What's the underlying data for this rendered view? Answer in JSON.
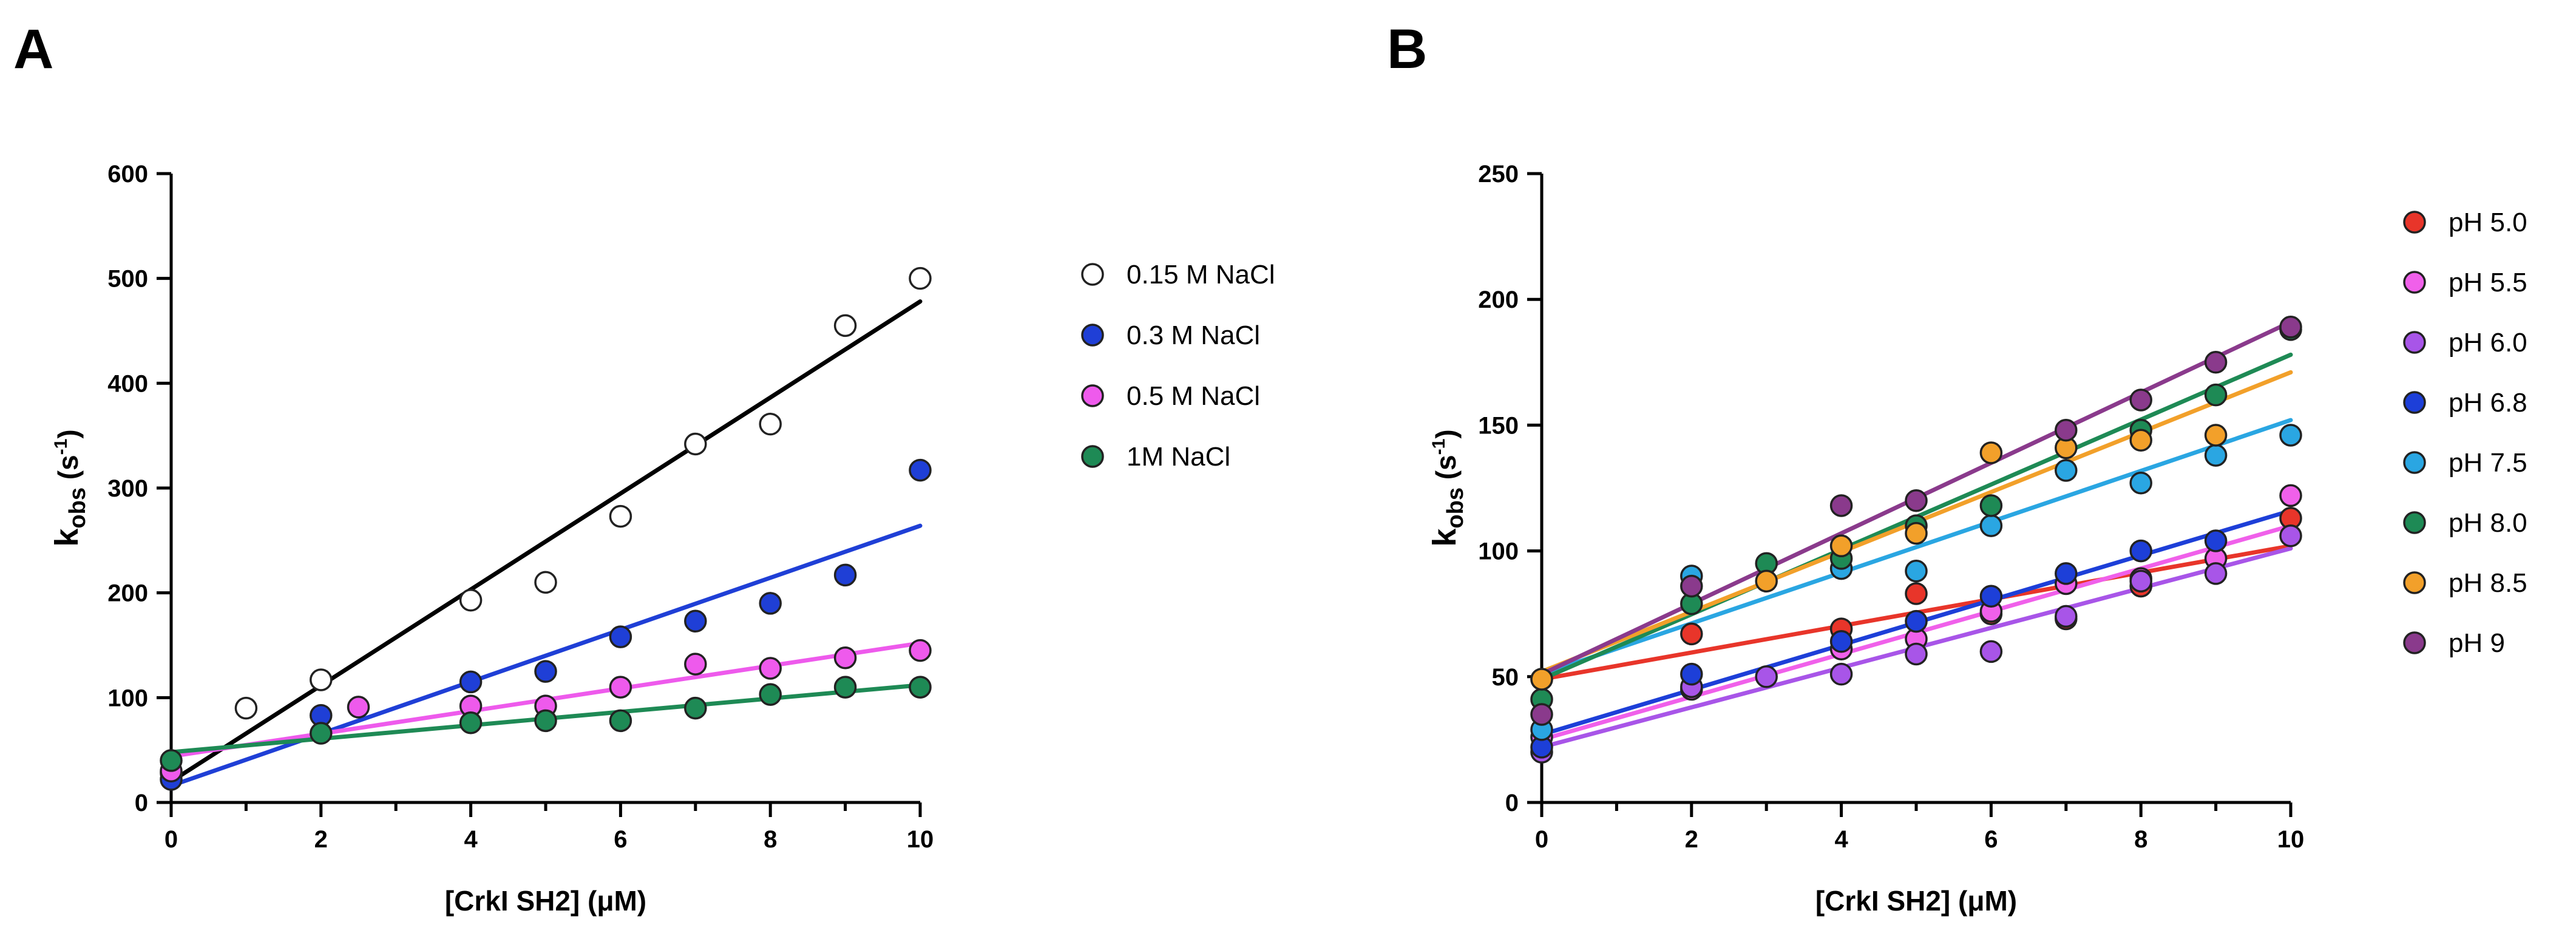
{
  "chart_data": [
    {
      "panel": "A",
      "type": "scatter",
      "title": "",
      "xlabel": "[CrkI SH2] (μM)",
      "ylabel_main": "k",
      "ylabel_sub": "obs",
      "ylabel_unit_prefix": " (s",
      "ylabel_unit_exp": "-1",
      "ylabel_unit_suffix": ")",
      "xlim": [
        0,
        10
      ],
      "ylim": [
        0,
        600
      ],
      "xticks": [
        0,
        2,
        4,
        6,
        8,
        10
      ],
      "yticks": [
        0,
        100,
        200,
        300,
        400,
        500,
        600
      ],
      "minor_xticks": [
        1,
        3,
        5,
        7,
        9
      ],
      "grid": false,
      "legend_position": "right",
      "series": [
        {
          "name": "0.15 M NaCl",
          "color": "#000000",
          "marker_fill": "#ffffff",
          "line_color": "#000000",
          "x": [
            0,
            1,
            2,
            4,
            5,
            6,
            7,
            8,
            9,
            10
          ],
          "y": [
            28,
            90,
            117,
            193,
            210,
            273,
            342,
            361,
            455,
            500
          ],
          "fit": [
            20,
            478
          ]
        },
        {
          "name": "0.3 M NaCl",
          "color": "#1f3fd6",
          "marker_fill": "#1f3fd6",
          "line_color": "#1f3fd6",
          "x": [
            0,
            2,
            4,
            5,
            6,
            7,
            8,
            9,
            10
          ],
          "y": [
            22,
            83,
            115,
            125,
            158,
            173,
            190,
            217,
            317
          ],
          "fit": [
            16,
            264
          ]
        },
        {
          "name": "0.5 M NaCl",
          "color": "#ee5aec",
          "marker_fill": "#ee5aec",
          "line_color": "#ee5aec",
          "x": [
            0,
            2.5,
            4,
            5,
            6,
            7,
            8,
            9,
            10
          ],
          "y": [
            30,
            91,
            92,
            92,
            110,
            132,
            128,
            138,
            145
          ],
          "fit": [
            44,
            152
          ]
        },
        {
          "name": "1M NaCl",
          "color": "#1e8a55",
          "marker_fill": "#1e8a55",
          "line_color": "#1e8a55",
          "x": [
            0,
            2,
            4,
            5,
            6,
            7,
            8,
            9,
            10
          ],
          "y": [
            40,
            66,
            76,
            78,
            78,
            90,
            103,
            110,
            110
          ],
          "fit": [
            48,
            112
          ]
        }
      ]
    },
    {
      "panel": "B",
      "type": "scatter",
      "title": "",
      "xlabel": "[CrkI SH2] (μM)",
      "ylabel_main": "k",
      "ylabel_sub": "obs",
      "ylabel_unit_prefix": " (s",
      "ylabel_unit_exp": "-1",
      "ylabel_unit_suffix": ")",
      "xlim": [
        0,
        10
      ],
      "ylim": [
        0,
        250
      ],
      "xticks": [
        0,
        2,
        4,
        6,
        8,
        10
      ],
      "yticks": [
        0,
        50,
        100,
        150,
        200,
        250
      ],
      "minor_xticks": [
        1,
        3,
        5,
        7,
        9
      ],
      "grid": false,
      "legend_position": "right",
      "series": [
        {
          "name": "pH 5.0",
          "color": "#e8352a",
          "marker_fill": "#e8352a",
          "line_color": "#e8352a",
          "x": [
            0,
            2,
            4,
            5,
            6,
            7,
            8,
            10
          ],
          "y": [
            49,
            67,
            69,
            83,
            75,
            73,
            86,
            113
          ],
          "fit": [
            49,
            102
          ]
        },
        {
          "name": "pH 5.5",
          "color": "#f060ea",
          "marker_fill": "#f060ea",
          "line_color": "#f060ea",
          "x": [
            0,
            2,
            4,
            5,
            6,
            7,
            8,
            9,
            10
          ],
          "y": [
            26,
            45,
            61,
            65,
            76,
            87,
            89,
            97,
            122
          ],
          "fit": [
            25,
            110
          ]
        },
        {
          "name": "pH 6.0",
          "color": "#a855e8",
          "marker_fill": "#a855e8",
          "line_color": "#a855e8",
          "x": [
            0,
            2,
            3,
            4,
            5,
            6,
            7,
            8,
            9,
            10
          ],
          "y": [
            20,
            46,
            50,
            51,
            59,
            60,
            74,
            88,
            91,
            106
          ],
          "fit": [
            22,
            101
          ]
        },
        {
          "name": "pH 6.8",
          "color": "#1d3fd8",
          "marker_fill": "#1d3fd8",
          "line_color": "#1d3fd8",
          "x": [
            0,
            2,
            4,
            5,
            6,
            7,
            8,
            9
          ],
          "y": [
            22,
            51,
            64,
            72,
            82,
            91,
            100,
            104
          ],
          "fit": [
            27,
            116
          ]
        },
        {
          "name": "pH 7.5",
          "color": "#2aa6e2",
          "marker_fill": "#2aa6e2",
          "line_color": "#2aa6e2",
          "x": [
            0,
            2,
            4,
            5,
            6,
            7,
            8,
            9,
            10
          ],
          "y": [
            29,
            90,
            93,
            92,
            110,
            132,
            127,
            138,
            146
          ],
          "fit": [
            51,
            152
          ]
        },
        {
          "name": "pH 8.0",
          "color": "#1e8a55",
          "marker_fill": "#1e8a55",
          "line_color": "#1e8a55",
          "x": [
            0,
            2,
            3,
            4,
            5,
            6,
            8,
            9,
            10
          ],
          "y": [
            41,
            79,
            95,
            97,
            110,
            118,
            148,
            162,
            188
          ],
          "fit": [
            49,
            178
          ]
        },
        {
          "name": "pH 8.5",
          "color": "#f2a02a",
          "marker_fill": "#f2a02a",
          "line_color": "#f2a02a",
          "x": [
            0,
            3,
            4,
            5,
            6,
            7,
            8,
            9
          ],
          "y": [
            49,
            88,
            102,
            107,
            139,
            141,
            144,
            146
          ],
          "fit": [
            52,
            171
          ]
        },
        {
          "name": "pH 9",
          "color": "#8a3a8c",
          "marker_fill": "#8a3a8c",
          "line_color": "#8a3a8c",
          "x": [
            0,
            2,
            4,
            5,
            7,
            8,
            9,
            10
          ],
          "y": [
            35,
            86,
            118,
            120,
            148,
            160,
            175,
            189
          ],
          "fit": [
            51,
            191
          ]
        }
      ]
    }
  ]
}
